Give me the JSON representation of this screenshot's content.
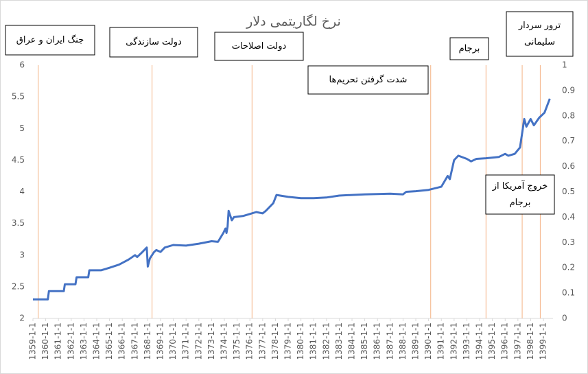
{
  "chart_data": {
    "type": "line",
    "title": "نرخ لگاریتمی دلار",
    "series": [
      {
        "color": "#4472c4",
        "x": [
          "1359-1-1",
          "1360-3-1",
          "1360-4-1",
          "1361-6-1",
          "1361-7-1",
          "1362-5-1",
          "1362-6-1",
          "1363-5-1",
          "1363-6-1",
          "1364-5-1",
          "1365-1-1",
          "1365-10-1",
          "1366-7-1",
          "1367-1-1",
          "1367-3-1",
          "1367-8-1",
          "1367-12-1",
          "1368-1-1",
          "1368-3-1",
          "1368-7-1",
          "1368-9-1",
          "1369-1-1",
          "1369-5-1",
          "1370-1-1",
          "1371-1-1",
          "1372-1-1",
          "1373-1-1",
          "1373-7-1",
          "1373-12-1",
          "1374-2-1",
          "1374-3-1",
          "1374-4-1",
          "1374-5-1",
          "1374-8-1",
          "1374-10-1",
          "1375-7-1",
          "1376-1-1",
          "1376-7-1",
          "1377-1-1",
          "1377-4-1",
          "1377-11-1",
          "1378-2-1",
          "1379-1-1",
          "1380-1-1",
          "1381-1-1",
          "1382-1-1",
          "1383-1-1",
          "1385-1-1",
          "1387-1-1",
          "1388-1-1",
          "1388-4-1",
          "1389-1-1",
          "1390-1-1",
          "1391-1-1",
          "1391-7-1",
          "1391-9-1",
          "1392-1-1",
          "1392-5-1",
          "1393-1-1",
          "1393-5-1",
          "1393-10-1",
          "1394-7-1",
          "1395-7-1",
          "1396-1-1",
          "1396-4-1",
          "1396-10-1",
          "1397-3-1",
          "1397-7-1",
          "1397-9-1",
          "1398-1-1",
          "1398-4-1",
          "1398-9-1",
          "1399-2-1",
          "1399-7-1"
        ],
        "values": [
          2.3,
          2.3,
          2.43,
          2.43,
          2.54,
          2.54,
          2.65,
          2.65,
          2.76,
          2.76,
          2.8,
          2.85,
          2.93,
          3.0,
          2.97,
          3.05,
          3.12,
          2.82,
          2.95,
          3.05,
          3.08,
          3.05,
          3.12,
          3.16,
          3.15,
          3.18,
          3.22,
          3.21,
          3.35,
          3.42,
          3.35,
          3.45,
          3.7,
          3.55,
          3.6,
          3.62,
          3.65,
          3.68,
          3.66,
          3.7,
          3.82,
          3.95,
          3.92,
          3.9,
          3.9,
          3.91,
          3.94,
          3.96,
          3.97,
          3.96,
          4.0,
          4.01,
          4.03,
          4.08,
          4.25,
          4.2,
          4.5,
          4.57,
          4.52,
          4.48,
          4.52,
          4.53,
          4.55,
          4.6,
          4.57,
          4.6,
          4.7,
          5.15,
          5.03,
          5.15,
          5.05,
          5.17,
          5.25,
          5.47
        ]
      }
    ],
    "xlim": [
      "1359-1-1",
      "1399-10-1"
    ],
    "xticks": [
      "1359-1-1",
      "1360-1-1",
      "1361-1-1",
      "1362-1-1",
      "1363-1-1",
      "1364-1-1",
      "1365-1-1",
      "1366-1-1",
      "1367-1-1",
      "1368-1-1",
      "1369-1-1",
      "1370-1-1",
      "1371-1-1",
      "1372-1-1",
      "1373-1-1",
      "1374-1-1",
      "1375-1-1",
      "1376-1-1",
      "1377-1-1",
      "1378-1-1",
      "1379-1-1",
      "1380-1-1",
      "1381-1-1",
      "1382-1-1",
      "1383-1-1",
      "1384-1-1",
      "1385-1-1",
      "1386-1-1",
      "1387-1-1",
      "1388-1-1",
      "1389-1-1",
      "1390-1-1",
      "1391-1-1",
      "1392-1-1",
      "1393-1-1",
      "1394-1-1",
      "1395-1-1",
      "1396-1-1",
      "1397-1-1",
      "1398-1-1",
      "1399-1-1"
    ],
    "ylim": [
      2,
      6
    ],
    "yticks": [
      2,
      2.5,
      3,
      3.5,
      4,
      4.5,
      5,
      5.5,
      6
    ],
    "y2lim": [
      0,
      1
    ],
    "y2ticks": [
      0,
      0.1,
      0.2,
      0.3,
      0.4,
      0.5,
      0.6,
      0.7,
      0.8,
      0.9,
      1
    ],
    "annotations": [
      {
        "text": [
          "جنگ ایران و عراق"
        ],
        "date": "1359-6-1"
      },
      {
        "text": [
          "دولت سازندگی"
        ],
        "date": "1368-5-1"
      },
      {
        "text": [
          "دولت اصلاحات"
        ],
        "date": "1376-3-1"
      },
      {
        "text": [
          "شدت گرفتن تحریم‌ها"
        ],
        "date": "1390-3-1"
      },
      {
        "text": [
          "برجام"
        ],
        "date": "1394-7-1"
      },
      {
        "text": [
          "ترور سردار",
          "سلیمانی"
        ],
        "date": "1398-10-1"
      },
      {
        "text": [
          "خروج آمریکا از",
          "برجام"
        ],
        "date": "1397-5-1"
      }
    ]
  }
}
